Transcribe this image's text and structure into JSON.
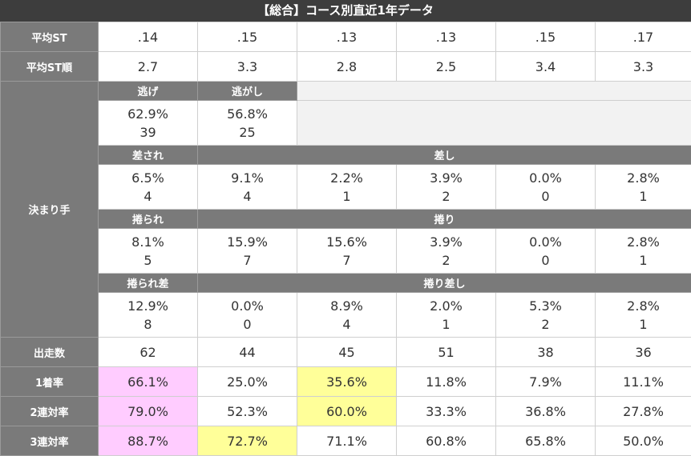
{
  "title": "【総合】コース別直近1年データ",
  "avg_st": {
    "label": "平均ST",
    "values": [
      ".14",
      ".15",
      ".13",
      ".13",
      ".15",
      ".17"
    ]
  },
  "avg_st_rank": {
    "label": "平均ST順",
    "values": [
      "2.7",
      "3.3",
      "2.8",
      "2.5",
      "3.4",
      "3.3"
    ]
  },
  "kimarite": {
    "label": "決まり手",
    "nige": {
      "label": "逃げ",
      "pct": "62.9%",
      "count": "39"
    },
    "nigashi": {
      "label": "逃がし",
      "pct": "56.8%",
      "count": "25"
    },
    "sasare": {
      "label": "差され",
      "pct": "6.5%",
      "count": "4"
    },
    "sashi": {
      "label": "差し",
      "pct": [
        "9.1%",
        "2.2%",
        "3.9%",
        "0.0%",
        "2.8%"
      ],
      "count": [
        "4",
        "1",
        "2",
        "0",
        "1"
      ]
    },
    "makurare": {
      "label": "捲られ",
      "pct": "8.1%",
      "count": "5"
    },
    "makuri": {
      "label": "捲り",
      "pct": [
        "15.9%",
        "15.6%",
        "3.9%",
        "0.0%",
        "2.8%"
      ],
      "count": [
        "7",
        "7",
        "2",
        "0",
        "1"
      ]
    },
    "makurare_sashi": {
      "label": "捲られ差",
      "pct": "12.9%",
      "count": "8"
    },
    "makuri_sashi": {
      "label": "捲り差し",
      "pct": [
        "0.0%",
        "8.9%",
        "2.0%",
        "5.3%",
        "2.8%"
      ],
      "count": [
        "0",
        "4",
        "1",
        "2",
        "1"
      ]
    }
  },
  "starts": {
    "label": "出走数",
    "values": [
      "62",
      "44",
      "45",
      "51",
      "38",
      "36"
    ]
  },
  "win_rate": {
    "label": "1着率",
    "values": [
      "66.1%",
      "25.0%",
      "35.6%",
      "11.8%",
      "7.9%",
      "11.1%"
    ]
  },
  "top2_rate": {
    "label": "2連対率",
    "values": [
      "79.0%",
      "52.3%",
      "60.0%",
      "33.3%",
      "36.8%",
      "27.8%"
    ]
  },
  "top3_rate": {
    "label": "3連対率",
    "values": [
      "88.7%",
      "72.7%",
      "71.1%",
      "60.8%",
      "65.8%",
      "50.0%"
    ]
  },
  "colors": {
    "header_bg": "#7a7a7a",
    "title_bg": "#3d3d3d",
    "highlight_pink": "#ffccff",
    "highlight_yellow": "#ffff99"
  }
}
